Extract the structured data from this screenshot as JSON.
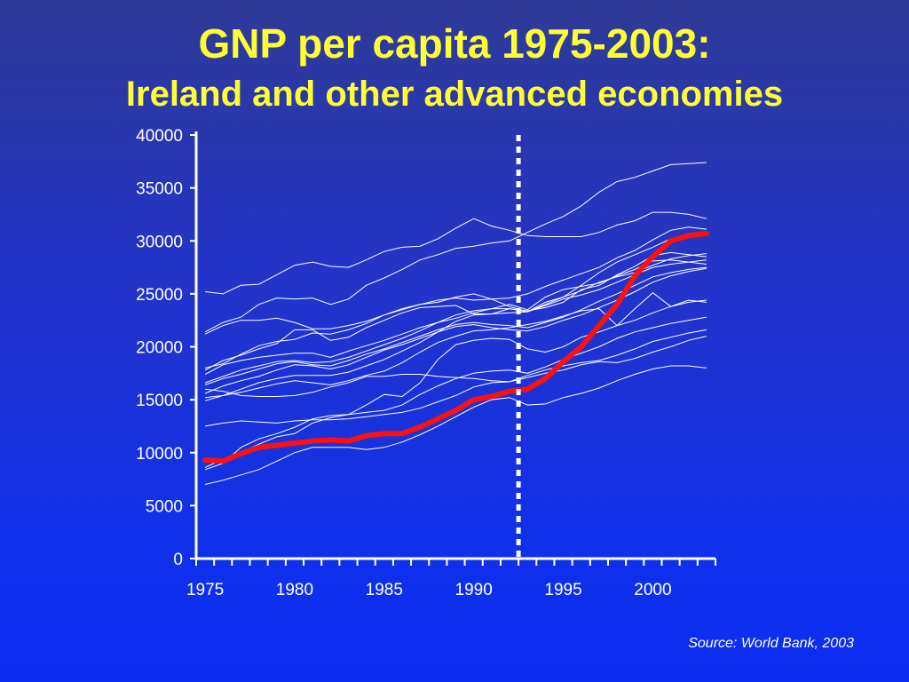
{
  "title": {
    "line1": "GNP per capita 1975-2003:",
    "line2": "Ireland and other advanced economies"
  },
  "source": "Source: World Bank, 2003",
  "colors": {
    "background": "#1a30e0",
    "title": "#ffff33",
    "highlight": "#ff1010",
    "others": "#ffffff"
  },
  "chart_data": {
    "type": "line",
    "xlim": [
      1975,
      2003
    ],
    "ylim": [
      0,
      40000
    ],
    "x_ticks": [
      1975,
      1980,
      1985,
      1990,
      1995,
      2000
    ],
    "y_ticks": [
      0,
      5000,
      10000,
      15000,
      20000,
      25000,
      30000,
      35000,
      40000
    ],
    "grid": false,
    "legend": "none",
    "reference_line": {
      "x": 1992.5,
      "style": "dotted"
    },
    "x": [
      1975,
      1976,
      1977,
      1978,
      1979,
      1980,
      1981,
      1982,
      1983,
      1984,
      1985,
      1986,
      1987,
      1988,
      1989,
      1990,
      1991,
      1992,
      1993,
      1994,
      1995,
      1996,
      1997,
      1998,
      1999,
      2000,
      2001,
      2002,
      2003
    ],
    "highlight_series": {
      "name": "Ireland",
      "values": [
        9300,
        9200,
        9900,
        10500,
        10700,
        10900,
        11100,
        11200,
        11100,
        11600,
        11800,
        11800,
        12400,
        13200,
        14000,
        15000,
        15300,
        15800,
        16000,
        17000,
        18600,
        20000,
        22000,
        24000,
        26700,
        28500,
        30000,
        30500,
        30700
      ]
    },
    "other_series": [
      {
        "values": [
          25200,
          25000,
          25800,
          25900,
          26800,
          27700,
          28000,
          27600,
          27500,
          28200,
          29000,
          29400,
          29500,
          30200,
          31200,
          32100,
          31400,
          31000,
          30500,
          30400,
          30400,
          30400,
          30800,
          31500,
          31900,
          32700,
          32700,
          32500,
          32100
        ]
      },
      {
        "values": [
          21400,
          22300,
          22800,
          24000,
          24600,
          24500,
          24600,
          24000,
          24500,
          25800,
          26500,
          27300,
          28200,
          28700,
          29300,
          29500,
          29800,
          30000,
          30800,
          31600,
          32300,
          33300,
          34600,
          35600,
          36000,
          36600,
          37200,
          37300,
          37400
        ]
      },
      {
        "values": [
          21200,
          22000,
          22500,
          22500,
          22700,
          22300,
          21700,
          21700,
          22000,
          22400,
          23000,
          23500,
          24000,
          24400,
          24600,
          24400,
          24500,
          24600,
          25000,
          25700,
          26300,
          26900,
          27500,
          28400,
          29100,
          30100,
          31000,
          31300,
          31100
        ]
      },
      {
        "values": [
          18000,
          18400,
          19300,
          20100,
          20500,
          20700,
          21300,
          21200,
          21600,
          22200,
          23000,
          23600,
          24000,
          24200,
          24700,
          25000,
          24500,
          23800,
          23300,
          24200,
          24700,
          25800,
          27000,
          28000,
          28700,
          29400,
          30200,
          30600,
          30800
        ]
      },
      {
        "values": [
          17800,
          18700,
          19200,
          19800,
          20300,
          21600,
          21600,
          20600,
          20900,
          21800,
          22500,
          23200,
          23700,
          23800,
          23900,
          23100,
          23100,
          23600,
          23400,
          23700,
          24200,
          25400,
          25800,
          26800,
          27600,
          28600,
          28900,
          28700,
          28500
        ]
      },
      {
        "values": [
          17400,
          18300,
          18700,
          19000,
          19200,
          19400,
          19400,
          19000,
          19600,
          20100,
          20600,
          21200,
          21800,
          22300,
          22700,
          23200,
          23600,
          24000,
          23500,
          24700,
          25400,
          25700,
          26000,
          26700,
          27300,
          28100,
          28200,
          28000,
          27800
        ]
      },
      {
        "values": [
          16600,
          17200,
          17800,
          18200,
          18600,
          18700,
          18500,
          18600,
          19000,
          19600,
          20200,
          20800,
          21500,
          22300,
          23000,
          23400,
          23600,
          23600,
          23300,
          24000,
          24700,
          25300,
          26100,
          26600,
          27000,
          27700,
          28300,
          28600,
          28800
        ]
      },
      {
        "values": [
          16400,
          17000,
          17400,
          17900,
          18400,
          18600,
          18300,
          18200,
          18700,
          19300,
          19800,
          20400,
          21000,
          21600,
          22100,
          22300,
          22100,
          22000,
          21800,
          22300,
          22800,
          23500,
          24300,
          25000,
          25800,
          26600,
          27000,
          27300,
          27500
        ]
      },
      {
        "values": [
          15600,
          16300,
          16800,
          17200,
          17800,
          18300,
          18200,
          17900,
          18300,
          19000,
          19700,
          20200,
          20800,
          21400,
          21900,
          22100,
          21800,
          21600,
          21500,
          21900,
          22500,
          23000,
          23700,
          24400,
          25200,
          26100,
          26700,
          27100,
          27400
        ]
      },
      {
        "values": [
          14900,
          15400,
          16000,
          16600,
          17000,
          17300,
          17300,
          17300,
          17600,
          18200,
          18800,
          19600,
          20400,
          21400,
          22400,
          23000,
          23100,
          23200,
          23300,
          23900,
          24500,
          24900,
          25400,
          26100,
          26800,
          27500,
          27800,
          28000,
          28200
        ]
      },
      {
        "values": [
          16000,
          15800,
          15400,
          15300,
          15300,
          15400,
          15700,
          16200,
          16600,
          17200,
          17200,
          17400,
          17400,
          17200,
          17100,
          17000,
          16800,
          16700,
          17300,
          17800,
          18200,
          18500,
          18700,
          19200,
          19800,
          20500,
          20900,
          21300,
          21600
        ]
      },
      {
        "values": [
          15200,
          15400,
          15700,
          16100,
          16500,
          16800,
          16600,
          16400,
          16800,
          17300,
          17700,
          18500,
          19500,
          20400,
          21000,
          21500,
          21600,
          21800,
          22100,
          22400,
          22900,
          23400,
          23600,
          22000,
          23600,
          25100,
          23800,
          24400,
          24200
        ]
      },
      {
        "values": [
          12500,
          12800,
          13000,
          12900,
          12800,
          13000,
          13100,
          13100,
          13200,
          13400,
          13600,
          13800,
          14200,
          14800,
          15400,
          16200,
          16600,
          16700,
          17100,
          17500,
          17800,
          18300,
          18600,
          18500,
          18900,
          19500,
          20000,
          20600,
          21000
        ]
      },
      {
        "values": [
          8600,
          9400,
          10000,
          10800,
          11500,
          11800,
          12800,
          13300,
          13600,
          14500,
          15500,
          15300,
          16600,
          18800,
          20200,
          20600,
          20800,
          20700,
          19800,
          19500,
          20000,
          20900,
          21400,
          22000,
          22500,
          23200,
          23800,
          24200,
          24400
        ]
      },
      {
        "values": [
          8400,
          9000,
          10500,
          11300,
          11800,
          12400,
          13200,
          13500,
          13600,
          13800,
          14000,
          14500,
          15500,
          16300,
          17000,
          17500,
          17700,
          17800,
          17500,
          18100,
          18800,
          19400,
          20000,
          20800,
          21400,
          21800,
          22200,
          22500,
          22800
        ]
      },
      {
        "values": [
          7000,
          7400,
          7900,
          8400,
          9200,
          10000,
          10500,
          10500,
          10500,
          10300,
          10500,
          11000,
          11700,
          12500,
          13400,
          14300,
          15000,
          15200,
          14500,
          14600,
          15200,
          15600,
          16100,
          16800,
          17400,
          17900,
          18200,
          18200,
          18000
        ]
      }
    ]
  }
}
